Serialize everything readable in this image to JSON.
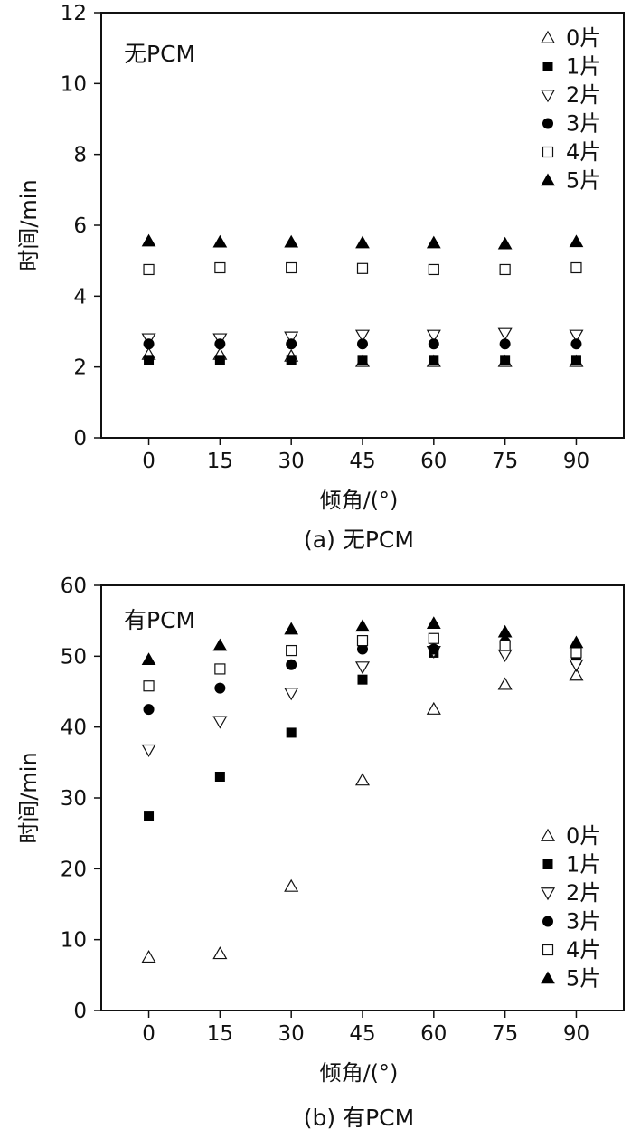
{
  "chart_data": [
    {
      "type": "scatter",
      "panel": "a",
      "caption": "(a) 无PCM",
      "annotation": "无PCM",
      "xlabel": "倾角/(°)",
      "ylabel": "时间/min",
      "x": [
        0,
        15,
        30,
        45,
        60,
        75,
        90
      ],
      "x_ticks": [
        "0",
        "15",
        "30",
        "45",
        "60",
        "75",
        "90"
      ],
      "y_ticks": [
        "0",
        "2",
        "4",
        "6",
        "8",
        "10",
        "12"
      ],
      "xlim": [
        -10,
        100
      ],
      "ylim": [
        0,
        12
      ],
      "legend_position": "top-right",
      "series": [
        {
          "name": "0片",
          "marker": "triangle-up-open",
          "values": [
            2.35,
            2.35,
            2.3,
            2.15,
            2.15,
            2.15,
            2.15
          ]
        },
        {
          "name": "1片",
          "marker": "square-filled",
          "values": [
            2.2,
            2.2,
            2.2,
            2.2,
            2.2,
            2.2,
            2.2
          ]
        },
        {
          "name": "2片",
          "marker": "triangle-down-open",
          "values": [
            2.8,
            2.8,
            2.85,
            2.9,
            2.9,
            2.95,
            2.9
          ]
        },
        {
          "name": "3片",
          "marker": "circle-filled",
          "values": [
            2.65,
            2.65,
            2.65,
            2.65,
            2.65,
            2.65,
            2.65
          ]
        },
        {
          "name": "4片",
          "marker": "square-open",
          "values": [
            4.75,
            4.8,
            4.8,
            4.78,
            4.75,
            4.75,
            4.8
          ]
        },
        {
          "name": "5片",
          "marker": "triangle-up-filled",
          "values": [
            5.55,
            5.52,
            5.52,
            5.5,
            5.5,
            5.47,
            5.53
          ]
        }
      ]
    },
    {
      "type": "scatter",
      "panel": "b",
      "caption": "(b) 有PCM",
      "annotation": "有PCM",
      "xlabel": "倾角/(°)",
      "ylabel": "时间/min",
      "x": [
        0,
        15,
        30,
        45,
        60,
        75,
        90
      ],
      "x_ticks": [
        "0",
        "15",
        "30",
        "45",
        "60",
        "75",
        "90"
      ],
      "y_ticks": [
        "0",
        "10",
        "20",
        "30",
        "40",
        "50",
        "60"
      ],
      "xlim": [
        -10,
        100
      ],
      "ylim": [
        0,
        60
      ],
      "legend_position": "bottom-right",
      "series": [
        {
          "name": "0片",
          "marker": "triangle-up-open",
          "values": [
            7.5,
            8.0,
            17.5,
            32.5,
            42.5,
            46.0,
            47.3
          ]
        },
        {
          "name": "1片",
          "marker": "square-filled",
          "values": [
            27.5,
            33.0,
            39.2,
            46.7,
            50.5,
            51.0,
            49.5
          ]
        },
        {
          "name": "2片",
          "marker": "triangle-down-open",
          "values": [
            36.8,
            40.8,
            44.8,
            48.5,
            50.7,
            50.2,
            48.8
          ]
        },
        {
          "name": "3片",
          "marker": "circle-filled",
          "values": [
            42.5,
            45.5,
            48.8,
            51.0,
            51.0,
            52.0,
            51.0
          ]
        },
        {
          "name": "4片",
          "marker": "square-open",
          "values": [
            45.8,
            48.2,
            50.8,
            52.2,
            52.5,
            51.5,
            50.5
          ]
        },
        {
          "name": "5片",
          "marker": "triangle-up-filled",
          "values": [
            49.5,
            51.5,
            53.8,
            54.2,
            54.6,
            53.4,
            51.9
          ]
        }
      ]
    }
  ]
}
